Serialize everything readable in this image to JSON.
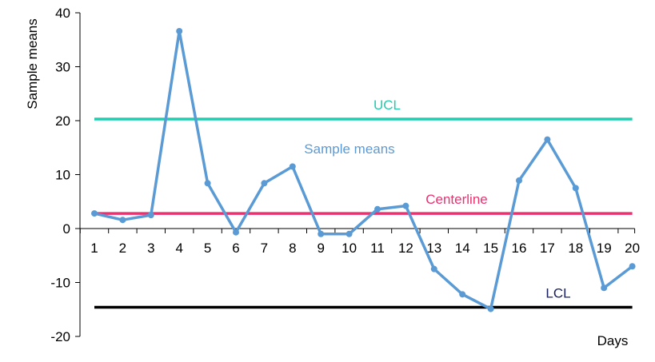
{
  "chart_data": {
    "type": "line",
    "xlabel": "Days",
    "ylabel": "Sample means",
    "ylim": [
      -20,
      40
    ],
    "yticks": [
      -20,
      -10,
      0,
      10,
      20,
      30,
      40
    ],
    "x": [
      1,
      2,
      3,
      4,
      5,
      6,
      7,
      8,
      9,
      10,
      11,
      12,
      13,
      14,
      15,
      16,
      17,
      18,
      19,
      20
    ],
    "xtick_labels": [
      "1",
      "2",
      "3",
      "4",
      "5",
      "6",
      "7",
      "8",
      "9",
      "10",
      "11",
      "12",
      "13",
      "14",
      "15",
      "16",
      "17",
      "18",
      "19",
      "20"
    ],
    "grid": false,
    "series": [
      {
        "name": "Sample means",
        "color": "#5b9bd5",
        "values": [
          2.8,
          1.6,
          2.5,
          36.6,
          8.4,
          -0.7,
          8.4,
          11.5,
          -1.0,
          -1.0,
          3.6,
          4.2,
          -7.5,
          -12.2,
          -14.9,
          8.9,
          16.5,
          7.5,
          -11.0,
          -7.0
        ]
      }
    ],
    "reference_lines": [
      {
        "name": "UCL",
        "value": 20.3,
        "color": "#1fcdb0",
        "label_color": "#1fcdb0"
      },
      {
        "name": "Centerline",
        "value": 2.8,
        "color": "#e8336f",
        "label_color": "#e8336f"
      },
      {
        "name": "LCL",
        "value": -14.6,
        "color": "#000000",
        "label_color": "#1a2060"
      }
    ]
  }
}
